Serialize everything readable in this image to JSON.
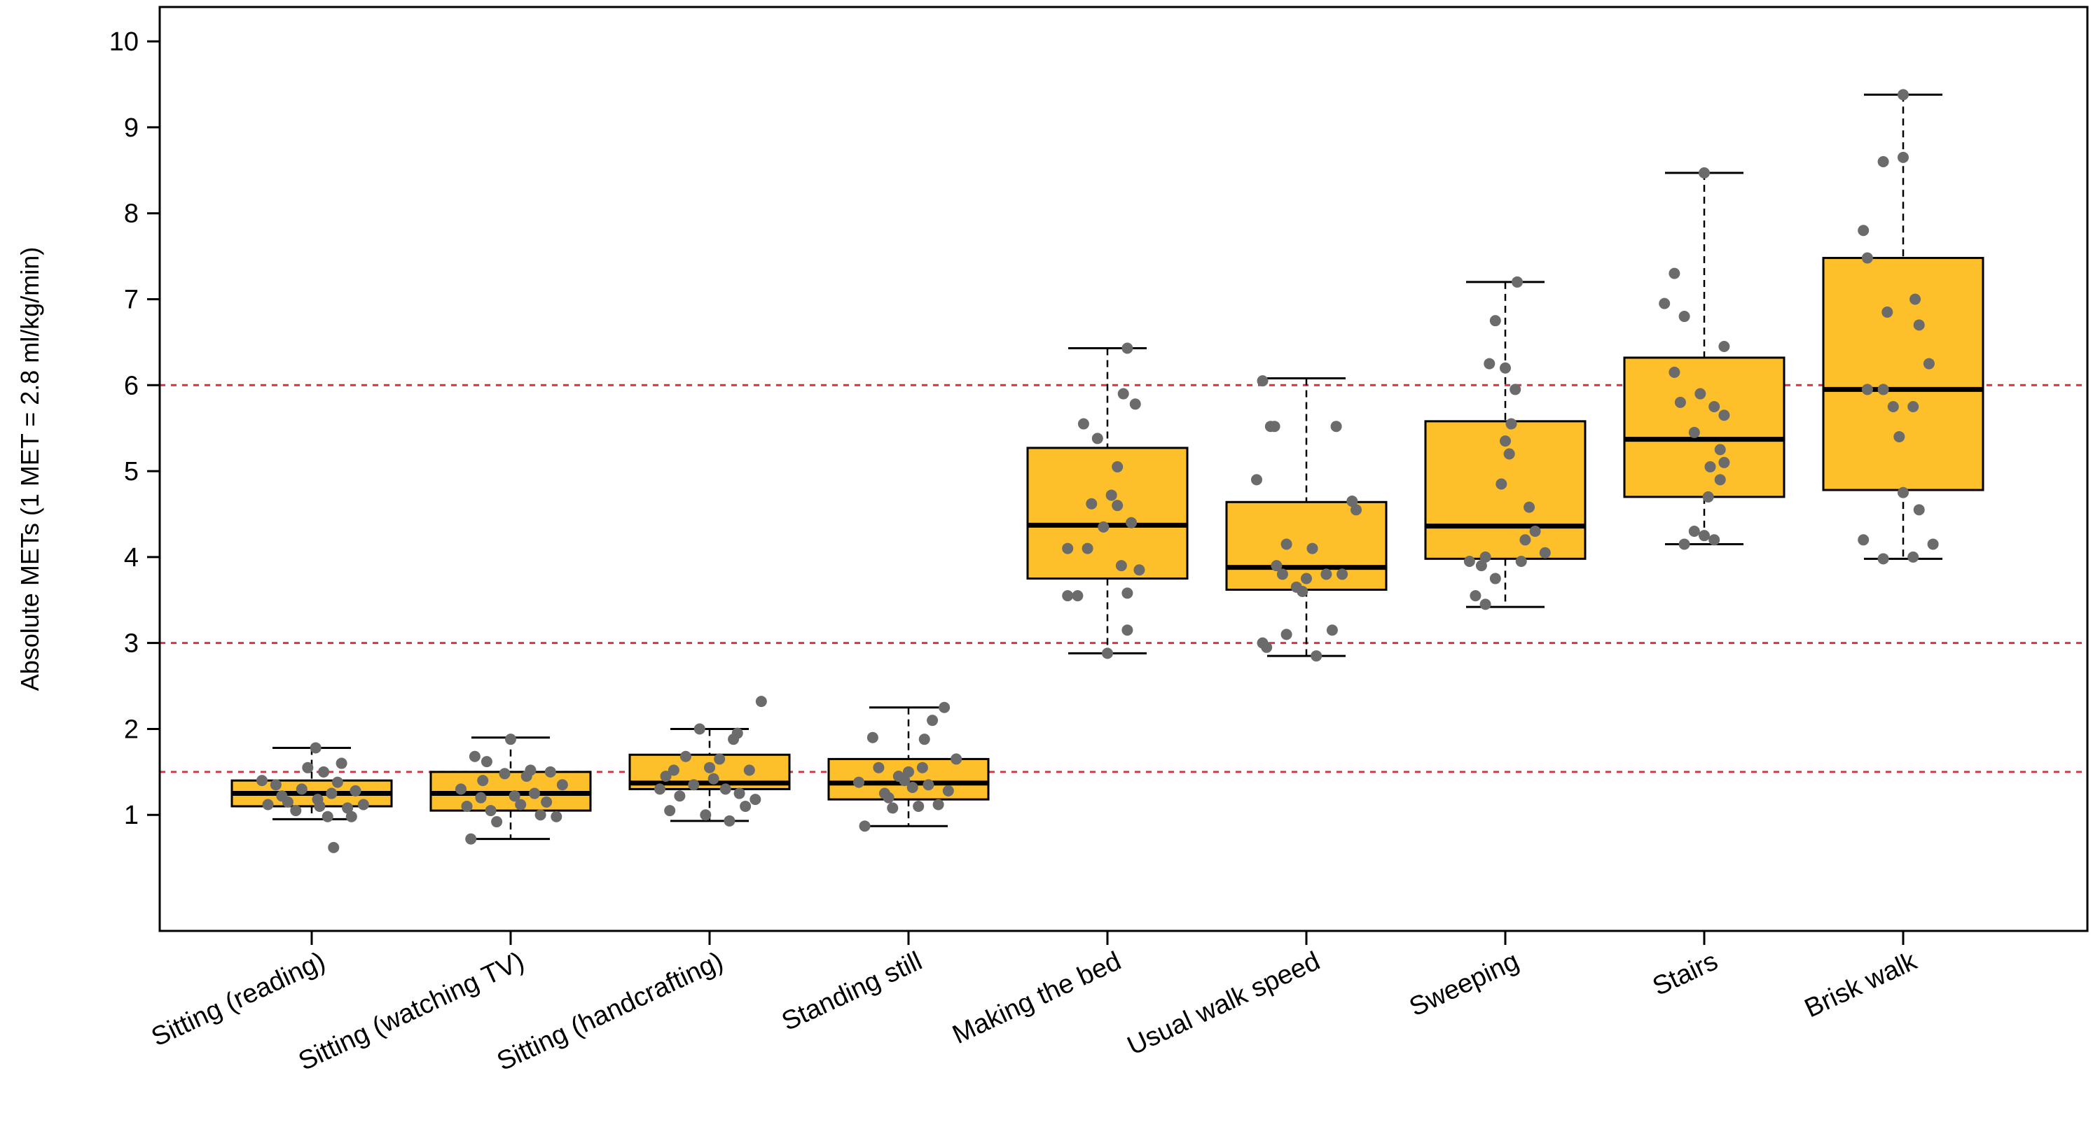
{
  "chart_data": {
    "type": "boxplot",
    "ylabel": "Absolute METs (1 MET = 2.8 ml/kg/min)",
    "xlabel": "",
    "ylim": [
      -0.35,
      10.4
    ],
    "yticks": [
      1,
      2,
      3,
      4,
      5,
      6,
      7,
      8,
      9,
      10
    ],
    "grid": false,
    "reference_lines": [
      1.5,
      3,
      6
    ],
    "colors": {
      "box_fill": "#FDBF2A",
      "box_stroke": "#000000",
      "median": "#000000",
      "points": "#6b6b6b",
      "reference_line": "#d9333f"
    },
    "categories": [
      "Sitting (reading)",
      "Sitting (watching TV)",
      "Sitting (handcrafting)",
      "Standing still",
      "Making the bed",
      "Usual walk speed",
      "Sweeping",
      "Stairs",
      "Brisk walk"
    ],
    "boxes": [
      {
        "min": 0.95,
        "q1": 1.1,
        "median": 1.25,
        "q3": 1.4,
        "max": 1.78
      },
      {
        "min": 0.72,
        "q1": 1.05,
        "median": 1.25,
        "q3": 1.5,
        "max": 1.9
      },
      {
        "min": 0.93,
        "q1": 1.3,
        "median": 1.37,
        "q3": 1.7,
        "max": 2.0
      },
      {
        "min": 0.87,
        "q1": 1.18,
        "median": 1.37,
        "q3": 1.65,
        "max": 2.25
      },
      {
        "min": 2.88,
        "q1": 3.75,
        "median": 4.37,
        "q3": 5.27,
        "max": 6.43
      },
      {
        "min": 2.85,
        "q1": 3.62,
        "median": 3.88,
        "q3": 4.64,
        "max": 6.08
      },
      {
        "min": 3.42,
        "q1": 3.98,
        "median": 4.36,
        "q3": 5.58,
        "max": 7.2
      },
      {
        "min": 4.15,
        "q1": 4.7,
        "median": 5.37,
        "q3": 6.32,
        "max": 8.47
      },
      {
        "min": 3.98,
        "q1": 4.78,
        "median": 5.95,
        "q3": 7.48,
        "max": 9.38
      }
    ],
    "points": [
      [
        {
          "dx": -0.22,
          "y": 1.12
        },
        {
          "dx": -0.12,
          "y": 1.15
        },
        {
          "dx": -0.05,
          "y": 1.3
        },
        {
          "dx": 0.03,
          "y": 1.18
        },
        {
          "dx": 0.1,
          "y": 1.25
        },
        {
          "dx": 0.18,
          "y": 1.08
        },
        {
          "dx": -0.18,
          "y": 1.35
        },
        {
          "dx": 0.06,
          "y": 1.5
        },
        {
          "dx": 0.15,
          "y": 1.6
        },
        {
          "dx": -0.02,
          "y": 1.55
        },
        {
          "dx": 0.08,
          "y": 0.98
        },
        {
          "dx": -0.08,
          "y": 1.05
        },
        {
          "dx": 0.22,
          "y": 1.28
        },
        {
          "dx": 0.11,
          "y": 0.62
        },
        {
          "dx": 0.02,
          "y": 1.78
        },
        {
          "dx": -0.15,
          "y": 1.22
        },
        {
          "dx": 0.26,
          "y": 1.12
        },
        {
          "dx": -0.25,
          "y": 1.4
        },
        {
          "dx": 0.13,
          "y": 1.38
        },
        {
          "dx": 0.2,
          "y": 0.98
        },
        {
          "dx": 0.04,
          "y": 1.1
        }
      ],
      [
        {
          "dx": -0.22,
          "y": 1.1
        },
        {
          "dx": -0.15,
          "y": 1.2
        },
        {
          "dx": -0.07,
          "y": 0.92
        },
        {
          "dx": -0.2,
          "y": 0.72
        },
        {
          "dx": 0.05,
          "y": 1.12
        },
        {
          "dx": 0.12,
          "y": 1.25
        },
        {
          "dx": 0.2,
          "y": 1.5
        },
        {
          "dx": 0.26,
          "y": 1.35
        },
        {
          "dx": -0.12,
          "y": 1.62
        },
        {
          "dx": -0.18,
          "y": 1.68
        },
        {
          "dx": 0.0,
          "y": 1.88
        },
        {
          "dx": -0.1,
          "y": 1.05
        },
        {
          "dx": 0.15,
          "y": 1.0
        },
        {
          "dx": 0.08,
          "y": 1.45
        },
        {
          "dx": -0.03,
          "y": 1.48
        },
        {
          "dx": 0.23,
          "y": 0.98
        },
        {
          "dx": -0.25,
          "y": 1.3
        },
        {
          "dx": 0.02,
          "y": 1.22
        },
        {
          "dx": 0.18,
          "y": 1.15
        },
        {
          "dx": -0.14,
          "y": 1.4
        },
        {
          "dx": 0.1,
          "y": 1.52
        }
      ],
      [
        {
          "dx": -0.25,
          "y": 1.3
        },
        {
          "dx": -0.12,
          "y": 1.68
        },
        {
          "dx": -0.2,
          "y": 1.05
        },
        {
          "dx": -0.05,
          "y": 2.0
        },
        {
          "dx": -0.18,
          "y": 1.52
        },
        {
          "dx": 0.02,
          "y": 1.42
        },
        {
          "dx": 0.08,
          "y": 1.3
        },
        {
          "dx": 0.15,
          "y": 1.25
        },
        {
          "dx": 0.2,
          "y": 1.52
        },
        {
          "dx": 0.26,
          "y": 2.32
        },
        {
          "dx": 0.1,
          "y": 0.93
        },
        {
          "dx": -0.08,
          "y": 1.35
        },
        {
          "dx": 0.18,
          "y": 1.1
        },
        {
          "dx": -0.15,
          "y": 1.22
        },
        {
          "dx": 0.12,
          "y": 1.88
        },
        {
          "dx": 0.05,
          "y": 1.65
        },
        {
          "dx": -0.02,
          "y": 1.0
        },
        {
          "dx": 0.23,
          "y": 1.18
        },
        {
          "dx": -0.22,
          "y": 1.45
        },
        {
          "dx": 0.14,
          "y": 1.95
        },
        {
          "dx": 0.0,
          "y": 1.55
        }
      ],
      [
        {
          "dx": -0.22,
          "y": 0.87
        },
        {
          "dx": -0.12,
          "y": 1.25
        },
        {
          "dx": -0.18,
          "y": 1.9
        },
        {
          "dx": -0.05,
          "y": 1.45
        },
        {
          "dx": 0.02,
          "y": 1.32
        },
        {
          "dx": 0.08,
          "y": 1.88
        },
        {
          "dx": 0.12,
          "y": 2.1
        },
        {
          "dx": 0.18,
          "y": 2.25
        },
        {
          "dx": 0.24,
          "y": 1.65
        },
        {
          "dx": -0.08,
          "y": 1.08
        },
        {
          "dx": 0.05,
          "y": 1.1
        },
        {
          "dx": 0.1,
          "y": 1.35
        },
        {
          "dx": -0.15,
          "y": 1.55
        },
        {
          "dx": 0.15,
          "y": 1.12
        },
        {
          "dx": -0.02,
          "y": 1.4
        },
        {
          "dx": 0.2,
          "y": 1.28
        },
        {
          "dx": -0.25,
          "y": 1.38
        },
        {
          "dx": 0.0,
          "y": 1.5
        },
        {
          "dx": -0.1,
          "y": 1.2
        },
        {
          "dx": 0.07,
          "y": 1.55
        }
      ],
      [
        {
          "dx": -0.2,
          "y": 3.55
        },
        {
          "dx": -0.12,
          "y": 5.55
        },
        {
          "dx": -0.05,
          "y": 5.38
        },
        {
          "dx": 0.08,
          "y": 5.9
        },
        {
          "dx": 0.14,
          "y": 5.78
        },
        {
          "dx": 0.1,
          "y": 6.43
        },
        {
          "dx": 0.12,
          "y": 4.4
        },
        {
          "dx": 0.16,
          "y": 3.85
        },
        {
          "dx": 0.1,
          "y": 3.15
        },
        {
          "dx": -0.1,
          "y": 4.1
        },
        {
          "dx": -0.02,
          "y": 4.35
        },
        {
          "dx": 0.05,
          "y": 4.6
        },
        {
          "dx": 0.02,
          "y": 4.72
        },
        {
          "dx": -0.08,
          "y": 4.62
        },
        {
          "dx": -0.2,
          "y": 4.1
        },
        {
          "dx": 0.07,
          "y": 3.9
        },
        {
          "dx": 0.1,
          "y": 3.58
        },
        {
          "dx": -0.15,
          "y": 3.55
        },
        {
          "dx": 0.0,
          "y": 2.88
        },
        {
          "dx": 0.05,
          "y": 5.05
        }
      ],
      [
        {
          "dx": -0.25,
          "y": 4.9
        },
        {
          "dx": -0.18,
          "y": 5.52
        },
        {
          "dx": -0.22,
          "y": 6.05
        },
        {
          "dx": -0.12,
          "y": 3.8
        },
        {
          "dx": -0.05,
          "y": 3.65
        },
        {
          "dx": 0.03,
          "y": 4.1
        },
        {
          "dx": 0.1,
          "y": 3.8
        },
        {
          "dx": 0.18,
          "y": 3.8
        },
        {
          "dx": 0.25,
          "y": 4.55
        },
        {
          "dx": 0.23,
          "y": 4.65
        },
        {
          "dx": 0.15,
          "y": 5.52
        },
        {
          "dx": -0.1,
          "y": 4.15
        },
        {
          "dx": -0.02,
          "y": 3.6
        },
        {
          "dx": 0.13,
          "y": 3.15
        },
        {
          "dx": -0.1,
          "y": 3.1
        },
        {
          "dx": -0.2,
          "y": 2.95
        },
        {
          "dx": 0.05,
          "y": 2.85
        },
        {
          "dx": -0.15,
          "y": 3.9
        },
        {
          "dx": -0.22,
          "y": 3.0
        },
        {
          "dx": -0.16,
          "y": 5.52
        },
        {
          "dx": 0.0,
          "y": 3.75
        }
      ],
      [
        {
          "dx": -0.18,
          "y": 3.95
        },
        {
          "dx": -0.1,
          "y": 4.0
        },
        {
          "dx": -0.05,
          "y": 3.75
        },
        {
          "dx": -0.15,
          "y": 3.55
        },
        {
          "dx": -0.1,
          "y": 3.45
        },
        {
          "dx": -0.05,
          "y": 6.75
        },
        {
          "dx": 0.0,
          "y": 6.2
        },
        {
          "dx": 0.05,
          "y": 5.95
        },
        {
          "dx": -0.08,
          "y": 6.25
        },
        {
          "dx": 0.03,
          "y": 5.55
        },
        {
          "dx": -0.02,
          "y": 4.85
        },
        {
          "dx": 0.1,
          "y": 4.2
        },
        {
          "dx": 0.15,
          "y": 4.3
        },
        {
          "dx": 0.2,
          "y": 4.05
        },
        {
          "dx": 0.12,
          "y": 4.58
        },
        {
          "dx": 0.0,
          "y": 5.35
        },
        {
          "dx": 0.06,
          "y": 7.2
        },
        {
          "dx": -0.12,
          "y": 3.9
        },
        {
          "dx": 0.08,
          "y": 3.95
        },
        {
          "dx": 0.02,
          "y": 5.2
        }
      ],
      [
        {
          "dx": -0.2,
          "y": 6.95
        },
        {
          "dx": -0.15,
          "y": 7.3
        },
        {
          "dx": -0.1,
          "y": 6.8
        },
        {
          "dx": -0.15,
          "y": 6.15
        },
        {
          "dx": -0.12,
          "y": 5.8
        },
        {
          "dx": -0.05,
          "y": 5.45
        },
        {
          "dx": 0.05,
          "y": 5.75
        },
        {
          "dx": 0.1,
          "y": 5.65
        },
        {
          "dx": 0.08,
          "y": 5.25
        },
        {
          "dx": 0.1,
          "y": 5.1
        },
        {
          "dx": 0.03,
          "y": 5.05
        },
        {
          "dx": 0.08,
          "y": 4.9
        },
        {
          "dx": 0.02,
          "y": 4.7
        },
        {
          "dx": -0.05,
          "y": 4.3
        },
        {
          "dx": 0.0,
          "y": 4.25
        },
        {
          "dx": 0.05,
          "y": 4.2
        },
        {
          "dx": -0.1,
          "y": 4.15
        },
        {
          "dx": 0.0,
          "y": 8.47
        },
        {
          "dx": 0.1,
          "y": 6.45
        },
        {
          "dx": -0.02,
          "y": 5.9
        }
      ],
      [
        {
          "dx": -0.2,
          "y": 7.8
        },
        {
          "dx": -0.18,
          "y": 7.48
        },
        {
          "dx": -0.1,
          "y": 8.6
        },
        {
          "dx": 0.0,
          "y": 8.65
        },
        {
          "dx": 0.0,
          "y": 9.38
        },
        {
          "dx": -0.08,
          "y": 6.85
        },
        {
          "dx": 0.06,
          "y": 7.0
        },
        {
          "dx": 0.08,
          "y": 6.7
        },
        {
          "dx": 0.13,
          "y": 6.25
        },
        {
          "dx": -0.1,
          "y": 5.95
        },
        {
          "dx": -0.05,
          "y": 5.75
        },
        {
          "dx": 0.05,
          "y": 5.75
        },
        {
          "dx": -0.18,
          "y": 5.95
        },
        {
          "dx": -0.02,
          "y": 5.4
        },
        {
          "dx": 0.0,
          "y": 4.75
        },
        {
          "dx": 0.08,
          "y": 4.55
        },
        {
          "dx": 0.15,
          "y": 4.15
        },
        {
          "dx": -0.2,
          "y": 4.2
        },
        {
          "dx": -0.1,
          "y": 3.98
        },
        {
          "dx": 0.05,
          "y": 4.0
        }
      ]
    ]
  }
}
